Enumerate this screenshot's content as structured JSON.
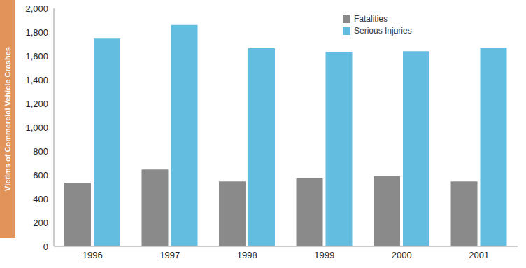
{
  "chart_data": {
    "type": "bar",
    "y_label": "Victims of Commercial Vehicle Crashes",
    "categories": [
      "1996",
      "1997",
      "1998",
      "1999",
      "2000",
      "2001"
    ],
    "series": [
      {
        "name": "Fatalities",
        "color": "#8a8a8a",
        "values": [
          535,
          645,
          545,
          570,
          590,
          545
        ]
      },
      {
        "name": "Serious Injuries",
        "color": "#62bde0",
        "values": [
          1745,
          1860,
          1665,
          1635,
          1640,
          1670
        ]
      }
    ],
    "ylim": [
      0,
      2000
    ],
    "yticks": [
      0,
      200,
      400,
      600,
      800,
      {
        "value": 1000,
        "label": "1,000"
      },
      {
        "value": 1200,
        "label": "1,200"
      },
      {
        "value": 1400,
        "label": "1,400"
      },
      {
        "value": 1600,
        "label": "1,600"
      },
      {
        "value": 1800,
        "label": "1,800"
      },
      {
        "value": 2000,
        "label": "2,000"
      }
    ],
    "grid": false,
    "legend": "top"
  }
}
